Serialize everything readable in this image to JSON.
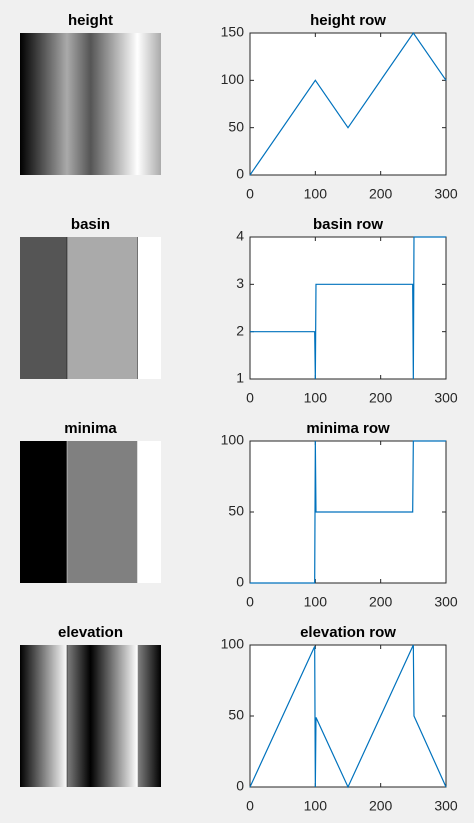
{
  "chart_data": [
    {
      "type": "image",
      "title": "height"
    },
    {
      "type": "line",
      "title": "height row",
      "x": [
        0,
        100,
        150,
        250,
        300
      ],
      "values": [
        0,
        100,
        50,
        150,
        100
      ],
      "color": "#0072bd",
      "xlim": [
        0,
        300
      ],
      "ylim": [
        0,
        150
      ],
      "xticks": [
        0,
        100,
        200,
        300
      ],
      "yticks": [
        0,
        50,
        100,
        150
      ]
    },
    {
      "type": "image",
      "title": "basin"
    },
    {
      "type": "line",
      "title": "basin row",
      "x": [
        0,
        99,
        100,
        101,
        249,
        250,
        251,
        300
      ],
      "values": [
        2,
        2,
        1,
        3,
        3,
        1,
        4,
        4
      ],
      "color": "#0072bd",
      "xlim": [
        0,
        300
      ],
      "ylim": [
        1,
        4
      ],
      "xticks": [
        0,
        100,
        200,
        300
      ],
      "yticks": [
        1,
        2,
        3,
        4
      ]
    },
    {
      "type": "image",
      "title": "minima"
    },
    {
      "type": "line",
      "title": "minima row",
      "x": [
        0,
        99,
        100,
        101,
        249,
        250,
        300
      ],
      "values": [
        0,
        0,
        100,
        50,
        50,
        100,
        100
      ],
      "color": "#0072bd",
      "xlim": [
        0,
        300
      ],
      "ylim": [
        0,
        100
      ],
      "xticks": [
        0,
        100,
        200,
        300
      ],
      "yticks": [
        0,
        50,
        100
      ]
    },
    {
      "type": "image",
      "title": "elevation"
    },
    {
      "type": "line",
      "title": "elevation row",
      "x": [
        0,
        99,
        100,
        101,
        150,
        250,
        251,
        300
      ],
      "values": [
        0,
        99,
        0,
        49,
        0,
        100,
        50,
        0
      ],
      "color": "#0072bd",
      "xlim": [
        0,
        300
      ],
      "ylim": [
        0,
        100
      ],
      "xticks": [
        0,
        100,
        200,
        300
      ],
      "yticks": [
        0,
        50,
        100
      ]
    }
  ]
}
